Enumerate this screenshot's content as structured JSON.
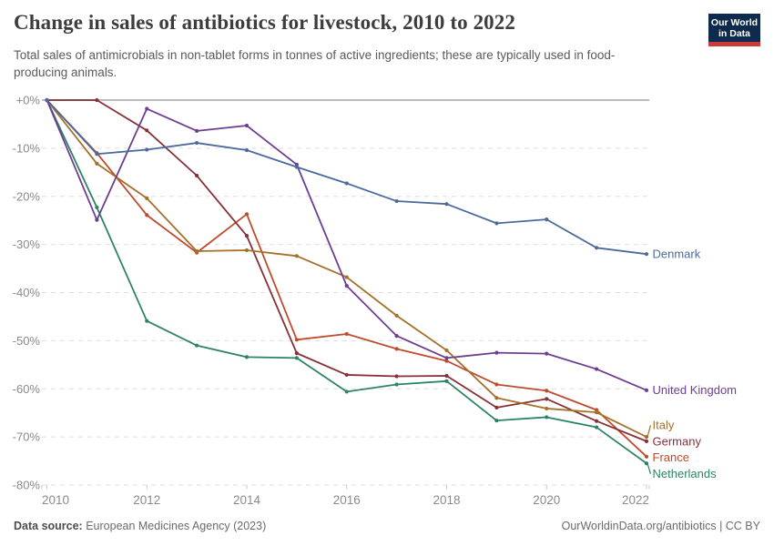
{
  "header": {
    "title": "Change in sales of antibiotics for livestock, 2010 to 2022",
    "subtitle": "Total sales of antimicrobials in non-tablet forms in tonnes of active ingredients; these are typically used in food-producing animals.",
    "logo": {
      "line1": "Our World",
      "line2": "in Data",
      "bg_color": "#0e2a4d",
      "accent_color": "#c93a39"
    }
  },
  "chart_data": {
    "type": "line",
    "title": "Change in sales of antibiotics for livestock, 2010 to 2022",
    "xlabel": "",
    "ylabel": "",
    "xlim": [
      2010,
      2022
    ],
    "ylim": [
      -80,
      0
    ],
    "grid": "horizontal-dashed",
    "legend_position": "right-end-labels",
    "x": [
      2010,
      2011,
      2012,
      2013,
      2014,
      2015,
      2016,
      2017,
      2018,
      2019,
      2020,
      2021,
      2022
    ],
    "x_ticks": [
      {
        "label": "2010",
        "year": 2010
      },
      {
        "label": "2012",
        "year": 2012
      },
      {
        "label": "2014",
        "year": 2014
      },
      {
        "label": "2016",
        "year": 2016
      },
      {
        "label": "2018",
        "year": 2018
      },
      {
        "label": "2020",
        "year": 2020
      },
      {
        "label": "2022",
        "year": 2022
      }
    ],
    "y_ticks": [
      {
        "label": "+0%",
        "value": 0
      },
      {
        "label": "-10%",
        "value": -10
      },
      {
        "label": "-20%",
        "value": -20
      },
      {
        "label": "-30%",
        "value": -30
      },
      {
        "label": "-40%",
        "value": -40
      },
      {
        "label": "-50%",
        "value": -50
      },
      {
        "label": "-60%",
        "value": -60
      },
      {
        "label": "-70%",
        "value": -70
      },
      {
        "label": "-80%",
        "value": -80
      }
    ],
    "series": [
      {
        "name": "Denmark",
        "color": "#4c6a9c",
        "values": [
          0,
          -11.2,
          -10.3,
          -8.9,
          -10.4,
          -13.9,
          -17.3,
          -21.0,
          -21.6,
          -25.6,
          -24.8,
          -30.7,
          -32.0
        ]
      },
      {
        "name": "United Kingdom",
        "color": "#6d3e91",
        "values": [
          0,
          -24.9,
          -1.8,
          -6.4,
          -5.3,
          -13.4,
          -38.6,
          -49.0,
          -53.6,
          -52.5,
          -52.7,
          -55.9,
          -60.3
        ]
      },
      {
        "name": "Italy",
        "color": "#a4702a",
        "values": [
          0,
          -13.2,
          -20.4,
          -31.4,
          -31.2,
          -32.4,
          -36.8,
          -44.8,
          -52.0,
          -61.9,
          -64.1,
          -64.9,
          -70.0
        ]
      },
      {
        "name": "Germany",
        "color": "#883039",
        "values": [
          0,
          0.0,
          -6.3,
          -15.7,
          -28.2,
          -52.6,
          -57.1,
          -57.4,
          -57.3,
          -63.9,
          -62.1,
          -66.7,
          -70.9
        ]
      },
      {
        "name": "France",
        "color": "#bf4b2d",
        "values": [
          0,
          -11.0,
          -23.9,
          -31.7,
          -23.7,
          -49.8,
          -48.6,
          -51.7,
          -54.2,
          -59.1,
          -60.4,
          -64.4,
          -74.1
        ]
      },
      {
        "name": "Netherlands",
        "color": "#2c8465",
        "values": [
          0,
          -22.3,
          -45.9,
          -51.0,
          -53.4,
          -53.6,
          -60.6,
          -59.1,
          -58.4,
          -66.6,
          -65.9,
          -68.0,
          -75.5
        ]
      }
    ]
  },
  "footer": {
    "source_label": "Data source:",
    "source_text": " European Medicines Agency (2023)",
    "attribution": "OurWorldinData.org/antibiotics | CC BY"
  }
}
